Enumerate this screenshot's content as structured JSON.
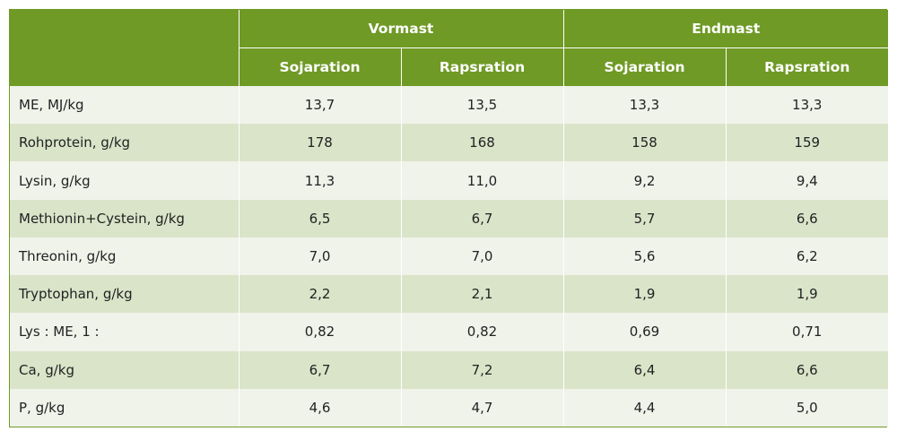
{
  "header": {
    "groups": [
      "Vormast",
      "Endmast"
    ],
    "subcolumns": [
      "Sojaration",
      "Rapsration",
      "Sojaration",
      "Rapsration"
    ]
  },
  "rows": [
    {
      "label": "ME, MJ/kg",
      "values": [
        "13,7",
        "13,5",
        "13,3",
        "13,3"
      ]
    },
    {
      "label": "Rohprotein, g/kg",
      "values": [
        "178",
        "168",
        "158",
        "159"
      ]
    },
    {
      "label": "Lysin, g/kg",
      "values": [
        "11,3",
        "11,0",
        "9,2",
        "9,4"
      ]
    },
    {
      "label": "Methionin+Cystein, g/kg",
      "values": [
        "6,5",
        "6,7",
        "5,7",
        "6,6"
      ]
    },
    {
      "label": "Threonin, g/kg",
      "values": [
        "7,0",
        "7,0",
        "5,6",
        "6,2"
      ]
    },
    {
      "label": "Tryptophan, g/kg",
      "values": [
        "2,2",
        "2,1",
        "1,9",
        "1,9"
      ]
    },
    {
      "label": "Lys : ME, 1 :",
      "values": [
        "0,82",
        "0,82",
        "0,69",
        "0,71"
      ]
    },
    {
      "label": "Ca, g/kg",
      "values": [
        "6,7",
        "7,2",
        "6,4",
        "6,6"
      ]
    },
    {
      "label": "P, g/kg",
      "values": [
        "4,6",
        "4,7",
        "4,4",
        "5,0"
      ]
    }
  ],
  "colors": {
    "header": "#6f9a25",
    "row_light": "#f0f3ea",
    "row_dark": "#dae4c9"
  }
}
